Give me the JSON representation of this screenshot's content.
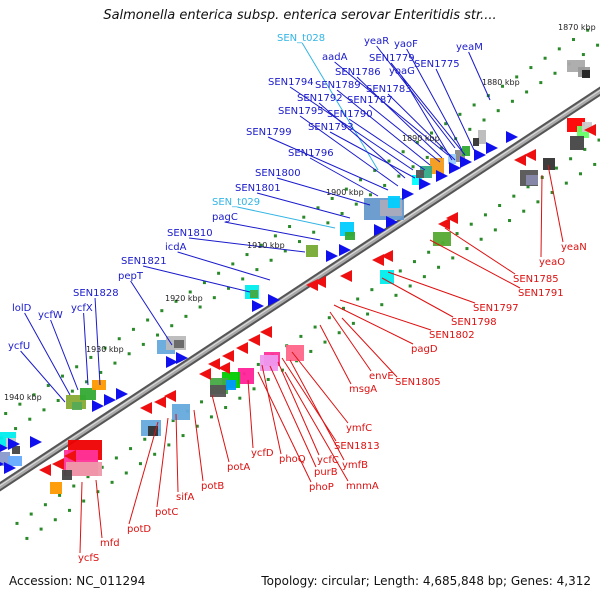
{
  "title": "Salmonella enterica subsp. enterica serovar Enteritidis str....",
  "footer": {
    "accession": "Accession: NC_011294",
    "summary": "Topology: circular; Length: 4,685,848 bp; Genes: 4,312"
  },
  "colors": {
    "forward_label": "#1a1acc",
    "rna_label": "#33b5e5",
    "reverse_label": "#dd1111",
    "backbone": "#888888"
  },
  "ticks": [
    {
      "text": "1870 kbp"
    },
    {
      "text": "1880 kbp"
    },
    {
      "text": "1890 kbp"
    },
    {
      "text": "1900 kbp"
    },
    {
      "text": "1910 kbp"
    },
    {
      "text": "1920 kbp"
    },
    {
      "text": "1930 kbp"
    },
    {
      "text": "1940 kbp"
    }
  ],
  "forward_genes": [
    {
      "name": "SEN_t028",
      "kind": "rna"
    },
    {
      "name": "yeaR",
      "kind": "cds"
    },
    {
      "name": "yaoF",
      "kind": "cds"
    },
    {
      "name": "yeaM",
      "kind": "cds"
    },
    {
      "name": "aadA",
      "kind": "cds"
    },
    {
      "name": "SEN1779",
      "kind": "cds"
    },
    {
      "name": "SEN1775",
      "kind": "cds"
    },
    {
      "name": "SEN1786",
      "kind": "cds"
    },
    {
      "name": "yoaG",
      "kind": "cds"
    },
    {
      "name": "SEN1794",
      "kind": "cds"
    },
    {
      "name": "SEN1789",
      "kind": "cds"
    },
    {
      "name": "SEN1783",
      "kind": "cds"
    },
    {
      "name": "SEN1792",
      "kind": "cds"
    },
    {
      "name": "SEN1787",
      "kind": "cds"
    },
    {
      "name": "SEN1795",
      "kind": "cds"
    },
    {
      "name": "SEN1790",
      "kind": "cds"
    },
    {
      "name": "SEN1793",
      "kind": "cds"
    },
    {
      "name": "SEN1799",
      "kind": "cds"
    },
    {
      "name": "SEN1796",
      "kind": "cds"
    },
    {
      "name": "SEN1800",
      "kind": "cds"
    },
    {
      "name": "SEN1801",
      "kind": "cds"
    },
    {
      "name": "SEN_t029",
      "kind": "rna"
    },
    {
      "name": "pagC",
      "kind": "cds"
    },
    {
      "name": "SEN1810",
      "kind": "cds"
    },
    {
      "name": "icdA",
      "kind": "cds"
    },
    {
      "name": "SEN1821",
      "kind": "cds"
    },
    {
      "name": "pepT",
      "kind": "cds"
    },
    {
      "name": "SEN1828",
      "kind": "cds"
    },
    {
      "name": "lolD",
      "kind": "cds"
    },
    {
      "name": "ycfW",
      "kind": "cds"
    },
    {
      "name": "ycfX",
      "kind": "cds"
    },
    {
      "name": "ycfU",
      "kind": "cds"
    }
  ],
  "reverse_genes": [
    {
      "name": "yeaN"
    },
    {
      "name": "yeaO"
    },
    {
      "name": "SEN1785"
    },
    {
      "name": "SEN1791"
    },
    {
      "name": "SEN1797"
    },
    {
      "name": "SEN1798"
    },
    {
      "name": "SEN1802"
    },
    {
      "name": "pagD"
    },
    {
      "name": "envE"
    },
    {
      "name": "SEN1805"
    },
    {
      "name": "msgA"
    },
    {
      "name": "ymfC"
    },
    {
      "name": "SEN1813"
    },
    {
      "name": "ycfC"
    },
    {
      "name": "ymfB"
    },
    {
      "name": "phoQ"
    },
    {
      "name": "purB"
    },
    {
      "name": "mnmA"
    },
    {
      "name": "phoP"
    },
    {
      "name": "ycfD"
    },
    {
      "name": "potA"
    },
    {
      "name": "potB"
    },
    {
      "name": "sifA"
    },
    {
      "name": "potC"
    },
    {
      "name": "potD"
    },
    {
      "name": "mfd"
    },
    {
      "name": "ycfS"
    }
  ]
}
